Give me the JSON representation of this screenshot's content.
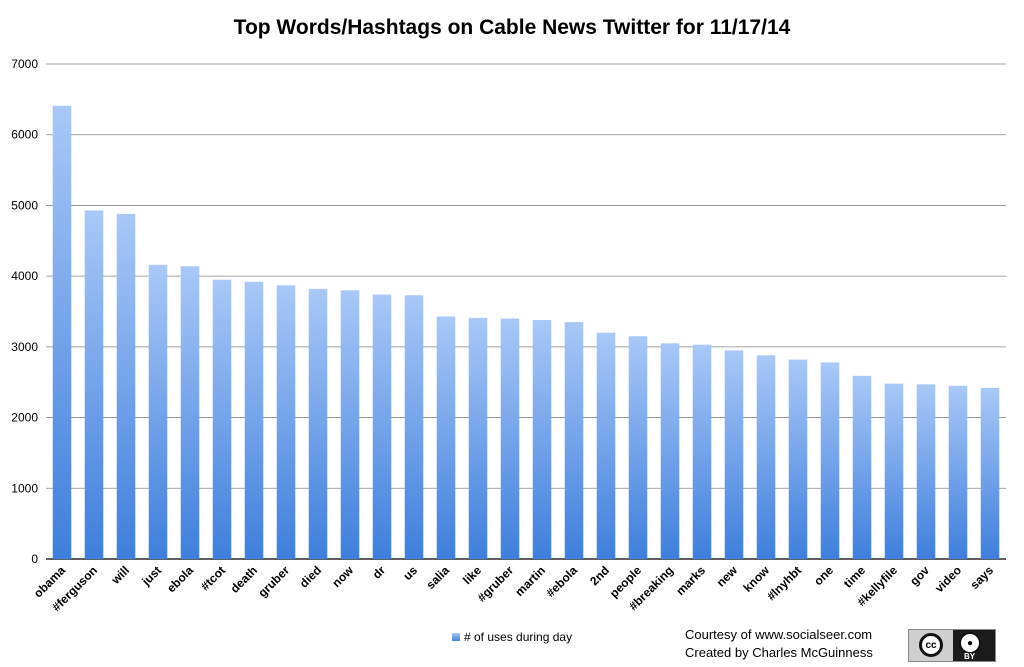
{
  "chart_data": {
    "type": "bar",
    "title": "Top Words/Hashtags on Cable News Twitter for 11/17/14",
    "categories": [
      "obama",
      "#ferguson",
      "will",
      "just",
      "ebola",
      "#tcot",
      "death",
      "gruber",
      "died",
      "now",
      "dr",
      "us",
      "salia",
      "like",
      "#gruber",
      "martin",
      "#ebola",
      "2nd",
      "people",
      "#breaking",
      "marks",
      "new",
      "know",
      "#lnyhbt",
      "one",
      "time",
      "#kellyfile",
      "gov",
      "video",
      "says"
    ],
    "series": [
      {
        "name": "# of uses during day",
        "values": [
          6410,
          4930,
          4880,
          4160,
          4140,
          3950,
          3920,
          3870,
          3820,
          3800,
          3740,
          3730,
          3430,
          3410,
          3400,
          3380,
          3350,
          3200,
          3150,
          3050,
          3030,
          2950,
          2880,
          2820,
          2780,
          2590,
          2480,
          2470,
          2450,
          2420
        ]
      }
    ],
    "ylim": [
      0,
      7000
    ],
    "yticks": [
      0,
      1000,
      2000,
      3000,
      4000,
      5000,
      6000,
      7000
    ],
    "grid": true,
    "legend_position": "bottom",
    "colors": {
      "bar_top": "#a9c8f7",
      "bar_bottom": "#3e7fdc",
      "grid": "#888888"
    }
  },
  "credits": {
    "line1": "Courtesy of www.socialseer.com",
    "line2": "Created by Charles McGuinness"
  },
  "license_badge": {
    "icon": "creative-commons-by",
    "label": "BY"
  }
}
